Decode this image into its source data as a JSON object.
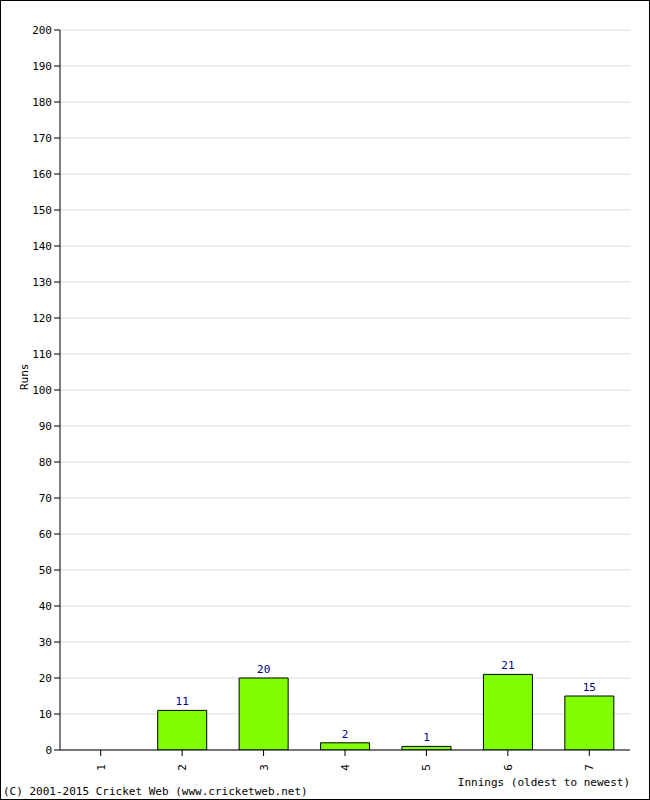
{
  "chart_data": {
    "type": "bar",
    "categories": [
      "1",
      "2",
      "3",
      "4",
      "5",
      "6",
      "7"
    ],
    "values": [
      0,
      11,
      20,
      2,
      1,
      21,
      15
    ],
    "color": "#80ff00",
    "ylim": [
      0,
      200
    ],
    "yticks": [
      0,
      10,
      20,
      30,
      40,
      50,
      60,
      70,
      80,
      90,
      100,
      110,
      120,
      130,
      140,
      150,
      160,
      170,
      180,
      190,
      200
    ],
    "y_label": "Runs",
    "x_label": "Innings (oldest to newest)",
    "annotation": "(C) 2001-2015 Cricket Web (www.cricketweb.net)",
    "data_labels": true,
    "grid": true
  }
}
